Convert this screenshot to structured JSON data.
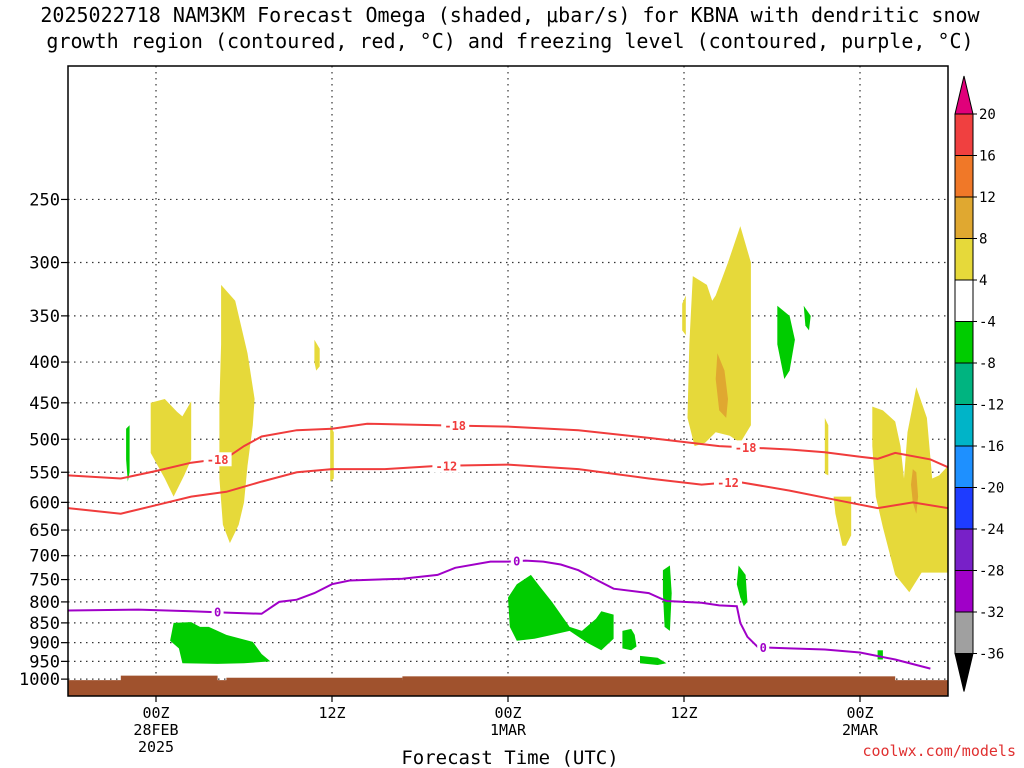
{
  "title_line1": "2025022718 NAM3KM Forecast Omega (shaded, μbar/s) for KBNA with dendritic snow",
  "title_line2": "growth region (contoured, red, °C) and freezing level (contoured, purple, °C)",
  "xlabel": "Forecast Time (UTC)",
  "watermark": "coolwx.com/models",
  "chart_data": {
    "type": "contour",
    "title": "2025022718 NAM3KM Forecast Omega (shaded, μbar/s) for KBNA with dendritic snow growth region (contoured, red, °C) and freezing level (contoured, purple, °C)",
    "xlabel": "Forecast Time (UTC)",
    "ylabel": "",
    "xlim_hours": [
      -5,
      45
    ],
    "ylim_hpa": [
      1050,
      170
    ],
    "y_scale": "log",
    "grid": true,
    "x_ticks": [
      {
        "h": 0,
        "lines": [
          "00Z",
          "28FEB",
          "2025"
        ]
      },
      {
        "h": 10,
        "lines": [
          "12Z"
        ]
      },
      {
        "h": 20,
        "lines": [
          "00Z",
          "1MAR"
        ]
      },
      {
        "h": 30,
        "lines": [
          "12Z"
        ]
      },
      {
        "h": 40,
        "lines": [
          "00Z",
          "2MAR"
        ]
      }
    ],
    "y_ticks": [
      250,
      300,
      350,
      400,
      450,
      500,
      550,
      600,
      650,
      700,
      750,
      800,
      850,
      900,
      950,
      1000
    ],
    "colorbar": {
      "labels": [
        "20",
        "16",
        "12",
        "8",
        "4",
        "-4",
        "-8",
        "-12",
        "-16",
        "-20",
        "-24",
        "-28",
        "-32",
        "-36"
      ],
      "colors": [
        "#e0007a",
        "#f04040",
        "#f07828",
        "#e0a830",
        "#e6d93a",
        "#ffffff",
        "#00cc00",
        "#00b480",
        "#00b4c8",
        "#1e90ff",
        "#1e3cff",
        "#7820c8",
        "#a000c8",
        "#a0a0a0",
        "#000000"
      ]
    },
    "series": [
      {
        "name": "-18",
        "color": "#f03c3c",
        "label_at_h": [
          3.5,
          17,
          33.5
        ],
        "points": [
          [
            -5,
            555
          ],
          [
            -2,
            560
          ],
          [
            0,
            548
          ],
          [
            2,
            535
          ],
          [
            4,
            528
          ],
          [
            5,
            510
          ],
          [
            6,
            496
          ],
          [
            8,
            487
          ],
          [
            10,
            485
          ],
          [
            12,
            478
          ],
          [
            16,
            480
          ],
          [
            20,
            482
          ],
          [
            24,
            487
          ],
          [
            28,
            498
          ],
          [
            32,
            510
          ],
          [
            36,
            515
          ],
          [
            38,
            519
          ],
          [
            40,
            526
          ],
          [
            41,
            529
          ],
          [
            42,
            520
          ],
          [
            44,
            530
          ],
          [
            45,
            542
          ]
        ]
      },
      {
        "name": "-12",
        "color": "#f03c3c",
        "label_at_h": [
          16.5,
          32.5
        ],
        "points": [
          [
            -5,
            610
          ],
          [
            -2,
            620
          ],
          [
            0,
            605
          ],
          [
            2,
            590
          ],
          [
            4,
            582
          ],
          [
            6,
            565
          ],
          [
            8,
            550
          ],
          [
            10,
            545
          ],
          [
            13,
            545
          ],
          [
            16,
            540
          ],
          [
            20,
            538
          ],
          [
            24,
            545
          ],
          [
            28,
            560
          ],
          [
            31,
            570
          ],
          [
            33,
            565
          ],
          [
            36,
            580
          ],
          [
            39,
            598
          ],
          [
            41,
            610
          ],
          [
            43,
            600
          ],
          [
            45,
            610
          ]
        ]
      },
      {
        "name": "0",
        "color": "#a000c8",
        "label_at_h": [
          3.5,
          20.5,
          34.5
        ],
        "points": [
          [
            -5,
            820
          ],
          [
            -1,
            818
          ],
          [
            2,
            822
          ],
          [
            4,
            825
          ],
          [
            6,
            828
          ],
          [
            7,
            800
          ],
          [
            8,
            795
          ],
          [
            9,
            780
          ],
          [
            10,
            760
          ],
          [
            11,
            752
          ],
          [
            14,
            748
          ],
          [
            16,
            740
          ],
          [
            17,
            725
          ],
          [
            19,
            712
          ],
          [
            20,
            712
          ],
          [
            21,
            710
          ],
          [
            22,
            712
          ],
          [
            23,
            718
          ],
          [
            24,
            730
          ],
          [
            25,
            750
          ],
          [
            26,
            770
          ],
          [
            28,
            780
          ],
          [
            29,
            798
          ],
          [
            31,
            802
          ],
          [
            32,
            808
          ],
          [
            33,
            810
          ],
          [
            33.2,
            850
          ],
          [
            33.6,
            885
          ],
          [
            34.2,
            912
          ],
          [
            36,
            915
          ],
          [
            38,
            918
          ],
          [
            40,
            926
          ],
          [
            42,
            945
          ],
          [
            44,
            970
          ]
        ]
      }
    ],
    "shaded_regions": [
      {
        "value": "4 to 8",
        "color": "#e6d93a",
        "polygons": [
          [
            [
              -0.3,
              450
            ],
            [
              0.5,
              445
            ],
            [
              1.2,
              462
            ],
            [
              1.5,
              468
            ],
            [
              2,
              448
            ],
            [
              2,
              530
            ],
            [
              1.6,
              555
            ],
            [
              1,
              590
            ],
            [
              0.5,
              560
            ],
            [
              -0.3,
              520
            ]
          ],
          [
            [
              3.7,
              320
            ],
            [
              4.5,
              335
            ],
            [
              5.2,
              390
            ],
            [
              5.6,
              445
            ],
            [
              5.5,
              480
            ],
            [
              5.2,
              540
            ],
            [
              5,
              600
            ],
            [
              4.7,
              640
            ],
            [
              4.2,
              675
            ],
            [
              3.8,
              640
            ],
            [
              3.6,
              560
            ],
            [
              3.6,
              450
            ],
            [
              3.7,
              380
            ]
          ],
          [
            [
              9.0,
              375
            ],
            [
              9.3,
              385
            ],
            [
              9.3,
              405
            ],
            [
              9.1,
              410
            ],
            [
              9.0,
              400
            ]
          ],
          [
            [
              9.9,
              480
            ],
            [
              10.1,
              490
            ],
            [
              10.1,
              560
            ],
            [
              9.9,
              565
            ]
          ],
          [
            [
              29.9,
              338
            ],
            [
              30.1,
              330
            ],
            [
              30.1,
              370
            ],
            [
              29.9,
              365
            ]
          ],
          [
            [
              30.5,
              312
            ],
            [
              31.3,
              320
            ],
            [
              31.6,
              335
            ],
            [
              31.8,
              330
            ],
            [
              32.5,
              300
            ],
            [
              33.2,
              270
            ],
            [
              33.8,
              300
            ],
            [
              33.8,
              480
            ],
            [
              33.2,
              505
            ],
            [
              32.6,
              495
            ],
            [
              31.8,
              490
            ],
            [
              31.2,
              505
            ],
            [
              30.6,
              510
            ],
            [
              30.2,
              470
            ],
            [
              30.3,
              380
            ]
          ],
          [
            [
              38.0,
              470
            ],
            [
              38.2,
              480
            ],
            [
              38.2,
              555
            ],
            [
              38.0,
              552
            ]
          ],
          [
            [
              38.5,
              590
            ],
            [
              39.5,
              590
            ],
            [
              39.5,
              660
            ],
            [
              39.2,
              680
            ],
            [
              39.0,
              680
            ],
            [
              38.6,
              620
            ]
          ],
          [
            [
              40.7,
              455
            ],
            [
              41.3,
              460
            ],
            [
              42.0,
              475
            ],
            [
              42.3,
              510
            ],
            [
              42.5,
              560
            ],
            [
              42.7,
              490
            ],
            [
              43.2,
              430
            ],
            [
              43.8,
              470
            ],
            [
              44.1,
              560
            ],
            [
              44.5,
              555
            ],
            [
              45,
              540
            ],
            [
              45,
              735
            ],
            [
              44.5,
              735
            ],
            [
              43.8,
              735
            ],
            [
              43.5,
              735
            ],
            [
              42.8,
              778
            ],
            [
              42,
              740
            ],
            [
              41.3,
              645
            ],
            [
              40.9,
              590
            ],
            [
              40.7,
              510
            ]
          ]
        ]
      },
      {
        "value": "8 to 12",
        "color": "#e0a830",
        "polygons": [
          [
            [
              31.9,
              390
            ],
            [
              32.3,
              410
            ],
            [
              32.5,
              445
            ],
            [
              32.4,
              470
            ],
            [
              32.0,
              460
            ],
            [
              31.8,
              420
            ]
          ],
          [
            [
              43.0,
              545
            ],
            [
              43.2,
              550
            ],
            [
              43.3,
              590
            ],
            [
              43.2,
              620
            ],
            [
              43.0,
              600
            ],
            [
              42.9,
              570
            ]
          ]
        ]
      },
      {
        "value": "-8 to -4",
        "color": "#00cc00",
        "polygons": [
          [
            [
              -1.7,
              485
            ],
            [
              -1.5,
              480
            ],
            [
              -1.5,
              550
            ],
            [
              -1.6,
              565
            ],
            [
              -1.7,
              530
            ]
          ],
          [
            [
              1.0,
              850
            ],
            [
              2.0,
              848
            ],
            [
              2.5,
              860
            ],
            [
              3.0,
              860
            ],
            [
              4.0,
              880
            ],
            [
              5.5,
              898
            ],
            [
              6.0,
              930
            ],
            [
              6.5,
              950
            ],
            [
              5.0,
              955
            ],
            [
              3.5,
              957
            ],
            [
              1.5,
              955
            ],
            [
              1.3,
              915
            ],
            [
              0.8,
              895
            ]
          ],
          [
            [
              20.0,
              790
            ],
            [
              20.5,
              760
            ],
            [
              21.3,
              740
            ],
            [
              21.8,
              765
            ],
            [
              22.5,
              800
            ],
            [
              23.5,
              860
            ],
            [
              24.2,
              870
            ],
            [
              25.0,
              840
            ],
            [
              25.3,
              822
            ],
            [
              26,
              830
            ],
            [
              26.0,
              890
            ],
            [
              25.3,
              920
            ],
            [
              24.5,
              900
            ],
            [
              23.5,
              870
            ],
            [
              22.5,
              880
            ],
            [
              21.5,
              890
            ],
            [
              20.5,
              895
            ],
            [
              20.1,
              860
            ]
          ],
          [
            [
              26.5,
              870
            ],
            [
              27.0,
              865
            ],
            [
              27.2,
              880
            ],
            [
              27.3,
              910
            ],
            [
              27.0,
              920
            ],
            [
              26.5,
              915
            ]
          ],
          [
            [
              27.5,
              935
            ],
            [
              28.5,
              940
            ],
            [
              29.0,
              955
            ],
            [
              28.5,
              960
            ],
            [
              27.5,
              955
            ]
          ],
          [
            [
              28.8,
              730
            ],
            [
              29.2,
              720
            ],
            [
              29.3,
              780
            ],
            [
              29.2,
              870
            ],
            [
              28.9,
              860
            ],
            [
              28.8,
              780
            ]
          ],
          [
            [
              33.1,
              720
            ],
            [
              33.5,
              740
            ],
            [
              33.6,
              800
            ],
            [
              33.4,
              810
            ],
            [
              33.2,
              790
            ],
            [
              33.0,
              760
            ]
          ],
          [
            [
              35.3,
              340
            ],
            [
              36.0,
              350
            ],
            [
              36.3,
              375
            ],
            [
              36.0,
              410
            ],
            [
              35.7,
              420
            ],
            [
              35.3,
              380
            ]
          ],
          [
            [
              36.8,
              340
            ],
            [
              37.2,
              350
            ],
            [
              37.1,
              365
            ],
            [
              36.9,
              360
            ]
          ],
          [
            [
              41.0,
              920
            ],
            [
              41.3,
              920
            ],
            [
              41.3,
              945
            ],
            [
              41.0,
              945
            ]
          ]
        ]
      }
    ],
    "contours_-18_-12_annotation": "dendritic snow growth region",
    "freezing_level_annotation": "0"
  }
}
